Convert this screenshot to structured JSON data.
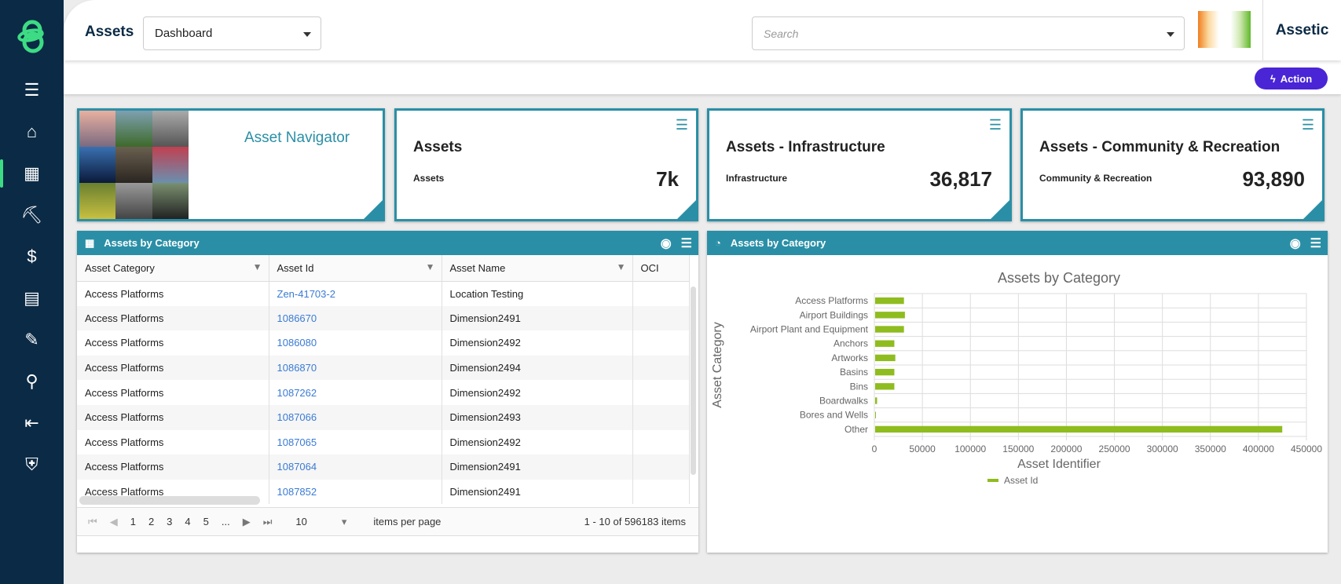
{
  "header": {
    "title": "Assets",
    "view_select": "Dashboard",
    "search_placeholder": "Search",
    "brand": "Assetic",
    "action_label": "Action"
  },
  "sidebar": {
    "items": [
      "menu-icon",
      "home-icon",
      "buildings-icon",
      "worker-icon",
      "finance-icon",
      "calculator-clipboard-icon",
      "edit-clipboard-icon",
      "search-icon",
      "import-icon",
      "shield-user-icon"
    ],
    "active": "buildings-icon"
  },
  "cards": [
    {
      "title": "Asset Navigator"
    },
    {
      "title": "Assets",
      "subtitle": "Assets",
      "value": "7k"
    },
    {
      "title": "Assets - Infrastructure",
      "subtitle": "Infrastructure",
      "value": "36,817"
    },
    {
      "title": "Assets - Community & Recreation",
      "subtitle": "Community & Recreation",
      "value": "93,890"
    }
  ],
  "table_panel": {
    "title": "Assets by Category",
    "columns": [
      "Asset Category",
      "Asset Id",
      "Asset Name",
      "OCI"
    ],
    "rows": [
      [
        "Access Platforms",
        "Zen-41703-2",
        "Location Testing",
        ""
      ],
      [
        "Access Platforms",
        "1086670",
        "Dimension2491",
        ""
      ],
      [
        "Access Platforms",
        "1086080",
        "Dimension2492",
        ""
      ],
      [
        "Access Platforms",
        "1086870",
        "Dimension2494",
        ""
      ],
      [
        "Access Platforms",
        "1087262",
        "Dimension2492",
        ""
      ],
      [
        "Access Platforms",
        "1087066",
        "Dimension2493",
        ""
      ],
      [
        "Access Platforms",
        "1087065",
        "Dimension2492",
        ""
      ],
      [
        "Access Platforms",
        "1087064",
        "Dimension2491",
        ""
      ],
      [
        "Access Platforms",
        "1087852",
        "Dimension2491",
        ""
      ]
    ],
    "pager": {
      "pages": [
        "1",
        "2",
        "3",
        "4",
        "5",
        "..."
      ],
      "page_size": "10",
      "page_size_label": "items per page",
      "summary": "1 - 10 of 596183 items"
    }
  },
  "chart_panel": {
    "title": "Assets by Category"
  },
  "chart_data": {
    "type": "bar",
    "orientation": "horizontal",
    "title": "Assets by Category",
    "xlabel": "Asset Identifier",
    "ylabel": "Asset Category",
    "categories": [
      "Access Platforms",
      "Airport Buildings",
      "Airport Plant and Equipment",
      "Anchors",
      "Artworks",
      "Basins",
      "Bins",
      "Boardwalks",
      "Bores and Wells",
      "Other"
    ],
    "series": [
      {
        "name": "Asset Id",
        "values": [
          30000,
          31000,
          30000,
          20000,
          21000,
          20000,
          20000,
          2000,
          500,
          424000
        ],
        "color": "#8fbc1f"
      }
    ],
    "xlim": [
      0,
      450000
    ],
    "xticks": [
      0,
      50000,
      100000,
      150000,
      200000,
      250000,
      300000,
      350000,
      400000,
      450000
    ],
    "grid": true,
    "legend": "bottom"
  },
  "colors": {
    "accent": "#2a8fa6",
    "sidebar": "#0b2a45",
    "action": "#4a25d6",
    "link": "#3a7bd5"
  }
}
